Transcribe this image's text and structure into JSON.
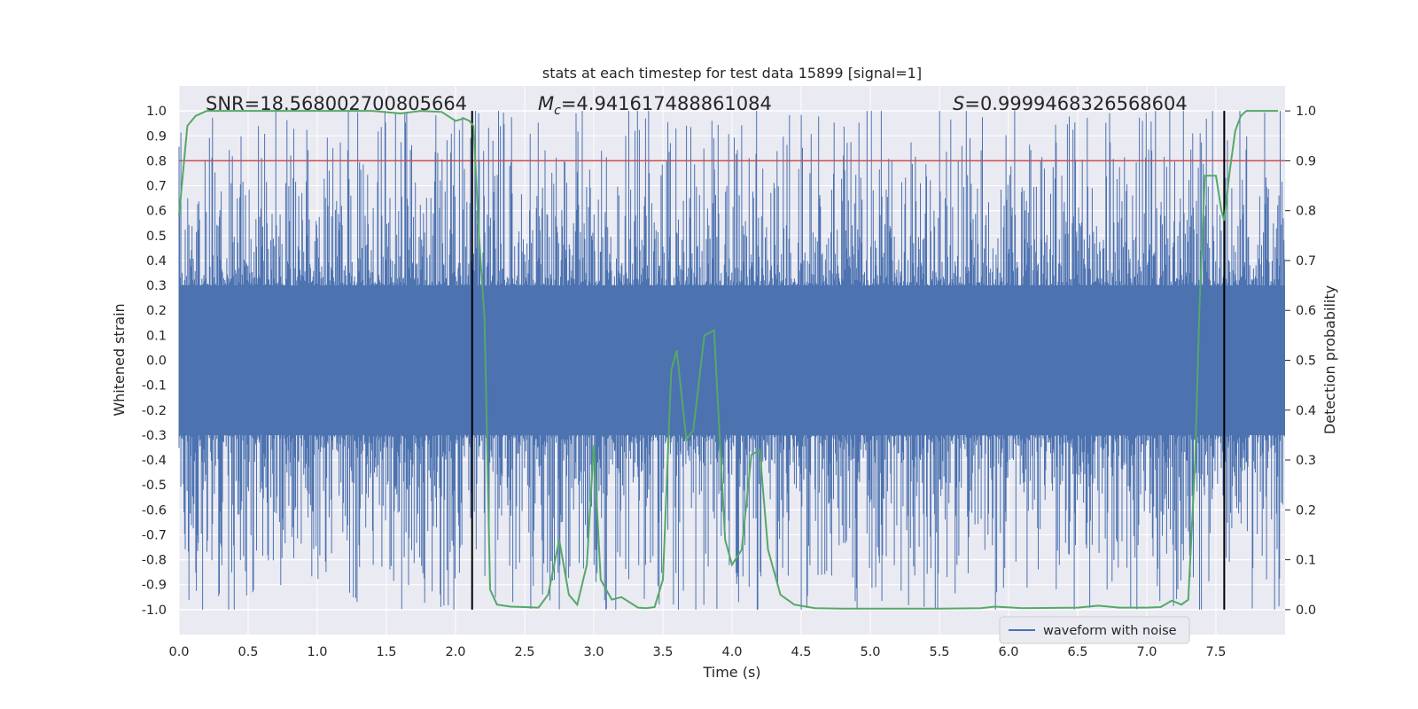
{
  "chart_data": {
    "type": "line",
    "title": "stats at each timestep for test data 15899 [signal=1]",
    "xlabel": "Time (s)",
    "ylabel": "Whitened strain",
    "y2label": "Detection probability",
    "xlim": [
      0.0,
      8.0
    ],
    "ylim": [
      -1.1,
      1.1
    ],
    "y2lim": [
      -0.05,
      1.05
    ],
    "xticks": [
      "0.0",
      "0.5",
      "1.0",
      "1.5",
      "2.0",
      "2.5",
      "3.0",
      "3.5",
      "4.0",
      "4.5",
      "5.0",
      "5.5",
      "6.0",
      "6.5",
      "7.0",
      "7.5"
    ],
    "xtick_values": [
      0,
      0.5,
      1,
      1.5,
      2,
      2.5,
      3,
      3.5,
      4,
      4.5,
      5,
      5.5,
      6,
      6.5,
      7,
      7.5
    ],
    "yticks": [
      "1.0",
      "0.9",
      "0.8",
      "0.7",
      "0.6",
      "0.5",
      "0.4",
      "0.3",
      "0.2",
      "0.1",
      "0.0",
      "-0.1",
      "-0.2",
      "-0.3",
      "-0.4",
      "-0.5",
      "-0.6",
      "-0.7",
      "-0.8",
      "-0.9",
      "-1.0"
    ],
    "ytick_values": [
      1.0,
      0.9,
      0.8,
      0.7,
      0.6,
      0.5,
      0.4,
      0.3,
      0.2,
      0.1,
      0.0,
      -0.1,
      -0.2,
      -0.3,
      -0.4,
      -0.5,
      -0.6,
      -0.7,
      -0.8,
      -0.9,
      -1.0
    ],
    "y2ticks": [
      "1.0",
      "0.9",
      "0.8",
      "0.7",
      "0.6",
      "0.5",
      "0.4",
      "0.3",
      "0.2",
      "0.1",
      "0.0"
    ],
    "y2tick_values": [
      1.0,
      0.9,
      0.8,
      0.7,
      0.6,
      0.5,
      0.4,
      0.3,
      0.2,
      0.1,
      0.0
    ],
    "annotations": {
      "snr": "SNR=18.568002700805664",
      "mc_symbol": "M",
      "mc_sub": "c",
      "mc_value": "=4.941617488861084",
      "s_symbol": "S",
      "s_value": "=0.9999468326568604"
    },
    "threshold": {
      "y2": 0.9,
      "color": "#c44e52"
    },
    "vlines": [
      2.12,
      7.56
    ],
    "waveform": {
      "name": "waveform with noise",
      "color": "#4c72b0",
      "core_amplitude": 0.3,
      "max_amplitude": 1.0,
      "duration": 8.0
    },
    "detection_probability": {
      "color": "#55a868",
      "x": [
        0.0,
        0.03,
        0.06,
        0.12,
        0.2,
        0.4,
        0.6,
        0.8,
        1.0,
        1.2,
        1.4,
        1.6,
        1.75,
        1.9,
        2.0,
        2.06,
        2.1,
        2.13,
        2.17,
        2.21,
        2.25,
        2.3,
        2.4,
        2.5,
        2.6,
        2.67,
        2.75,
        2.82,
        2.88,
        2.95,
        3.0,
        3.05,
        3.13,
        3.2,
        3.32,
        3.38,
        3.44,
        3.5,
        3.56,
        3.6,
        3.67,
        3.72,
        3.8,
        3.87,
        3.95,
        4.0,
        4.07,
        4.14,
        4.2,
        4.26,
        4.35,
        4.45,
        4.6,
        4.8,
        5.0,
        5.5,
        5.8,
        5.9,
        6.1,
        6.5,
        6.65,
        6.8,
        7.0,
        7.1,
        7.18,
        7.25,
        7.3,
        7.35,
        7.38,
        7.42,
        7.46,
        7.5,
        7.54,
        7.56,
        7.6,
        7.64,
        7.68,
        7.72,
        7.8,
        7.95
      ],
      "y": [
        0.79,
        0.88,
        0.97,
        0.99,
        1.0,
        1.0,
        1.0,
        1.0,
        1.0,
        1.0,
        1.0,
        0.995,
        1.0,
        0.998,
        0.98,
        0.985,
        0.98,
        0.97,
        0.75,
        0.58,
        0.04,
        0.01,
        0.006,
        0.005,
        0.004,
        0.03,
        0.14,
        0.03,
        0.01,
        0.09,
        0.33,
        0.06,
        0.02,
        0.025,
        0.004,
        0.003,
        0.005,
        0.06,
        0.48,
        0.52,
        0.34,
        0.36,
        0.55,
        0.56,
        0.14,
        0.09,
        0.12,
        0.31,
        0.32,
        0.12,
        0.03,
        0.01,
        0.003,
        0.002,
        0.002,
        0.002,
        0.003,
        0.006,
        0.003,
        0.004,
        0.008,
        0.004,
        0.004,
        0.005,
        0.018,
        0.01,
        0.02,
        0.3,
        0.6,
        0.87,
        0.87,
        0.87,
        0.8,
        0.78,
        0.88,
        0.96,
        0.99,
        1.0,
        1.0,
        1.0
      ]
    },
    "legend": {
      "label": "waveform with noise",
      "placement": "lower-right"
    }
  }
}
